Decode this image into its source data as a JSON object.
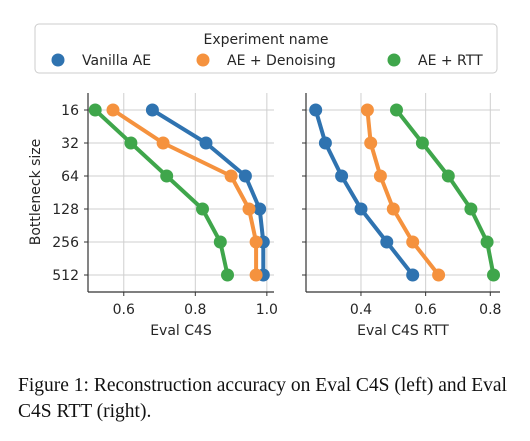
{
  "legend": {
    "title": "Experiment name",
    "entries": [
      {
        "label": "Vanilla AE",
        "color": "#2f73b0"
      },
      {
        "label": "AE + Denoising",
        "color": "#f5923e"
      },
      {
        "label": "AE + RTT",
        "color": "#3fa64b"
      }
    ]
  },
  "chart_data": [
    {
      "type": "line",
      "xlabel": "Eval C4S",
      "ylabel": "Bottleneck size",
      "categories": [
        "16",
        "32",
        "64",
        "128",
        "256",
        "512"
      ],
      "xlim": [
        0.5,
        1.02
      ],
      "xticks": [
        0.6,
        0.8,
        1.0
      ],
      "xtick_labels": [
        "0.6",
        "0.8",
        "1.0"
      ],
      "grid": true,
      "series": [
        {
          "name": "Vanilla AE",
          "color": "#2f73b0",
          "values": [
            0.68,
            0.83,
            0.94,
            0.98,
            0.99,
            0.99
          ]
        },
        {
          "name": "AE + Denoising",
          "color": "#f5923e",
          "values": [
            0.57,
            0.71,
            0.9,
            0.95,
            0.97,
            0.97
          ]
        },
        {
          "name": "AE + RTT",
          "color": "#3fa64b",
          "values": [
            0.52,
            0.62,
            0.72,
            0.82,
            0.87,
            0.89
          ]
        }
      ]
    },
    {
      "type": "line",
      "xlabel": "Eval C4S RTT",
      "ylabel": "",
      "categories": [
        "16",
        "32",
        "64",
        "128",
        "256",
        "512"
      ],
      "xlim": [
        0.23,
        0.83
      ],
      "xticks": [
        0.4,
        0.6,
        0.8
      ],
      "xtick_labels": [
        "0.4",
        "0.6",
        "0.8"
      ],
      "grid": true,
      "series": [
        {
          "name": "Vanilla AE",
          "color": "#2f73b0",
          "values": [
            0.26,
            0.29,
            0.34,
            0.4,
            0.48,
            0.56
          ]
        },
        {
          "name": "AE + Denoising",
          "color": "#f5923e",
          "values": [
            0.42,
            0.43,
            0.46,
            0.5,
            0.56,
            0.64
          ]
        },
        {
          "name": "AE + RTT",
          "color": "#3fa64b",
          "values": [
            0.51,
            0.59,
            0.67,
            0.74,
            0.79,
            0.81
          ]
        }
      ]
    }
  ],
  "caption": "Figure 1: Reconstruction accuracy on Eval C4S (left) and Eval C4S RTT (right)."
}
